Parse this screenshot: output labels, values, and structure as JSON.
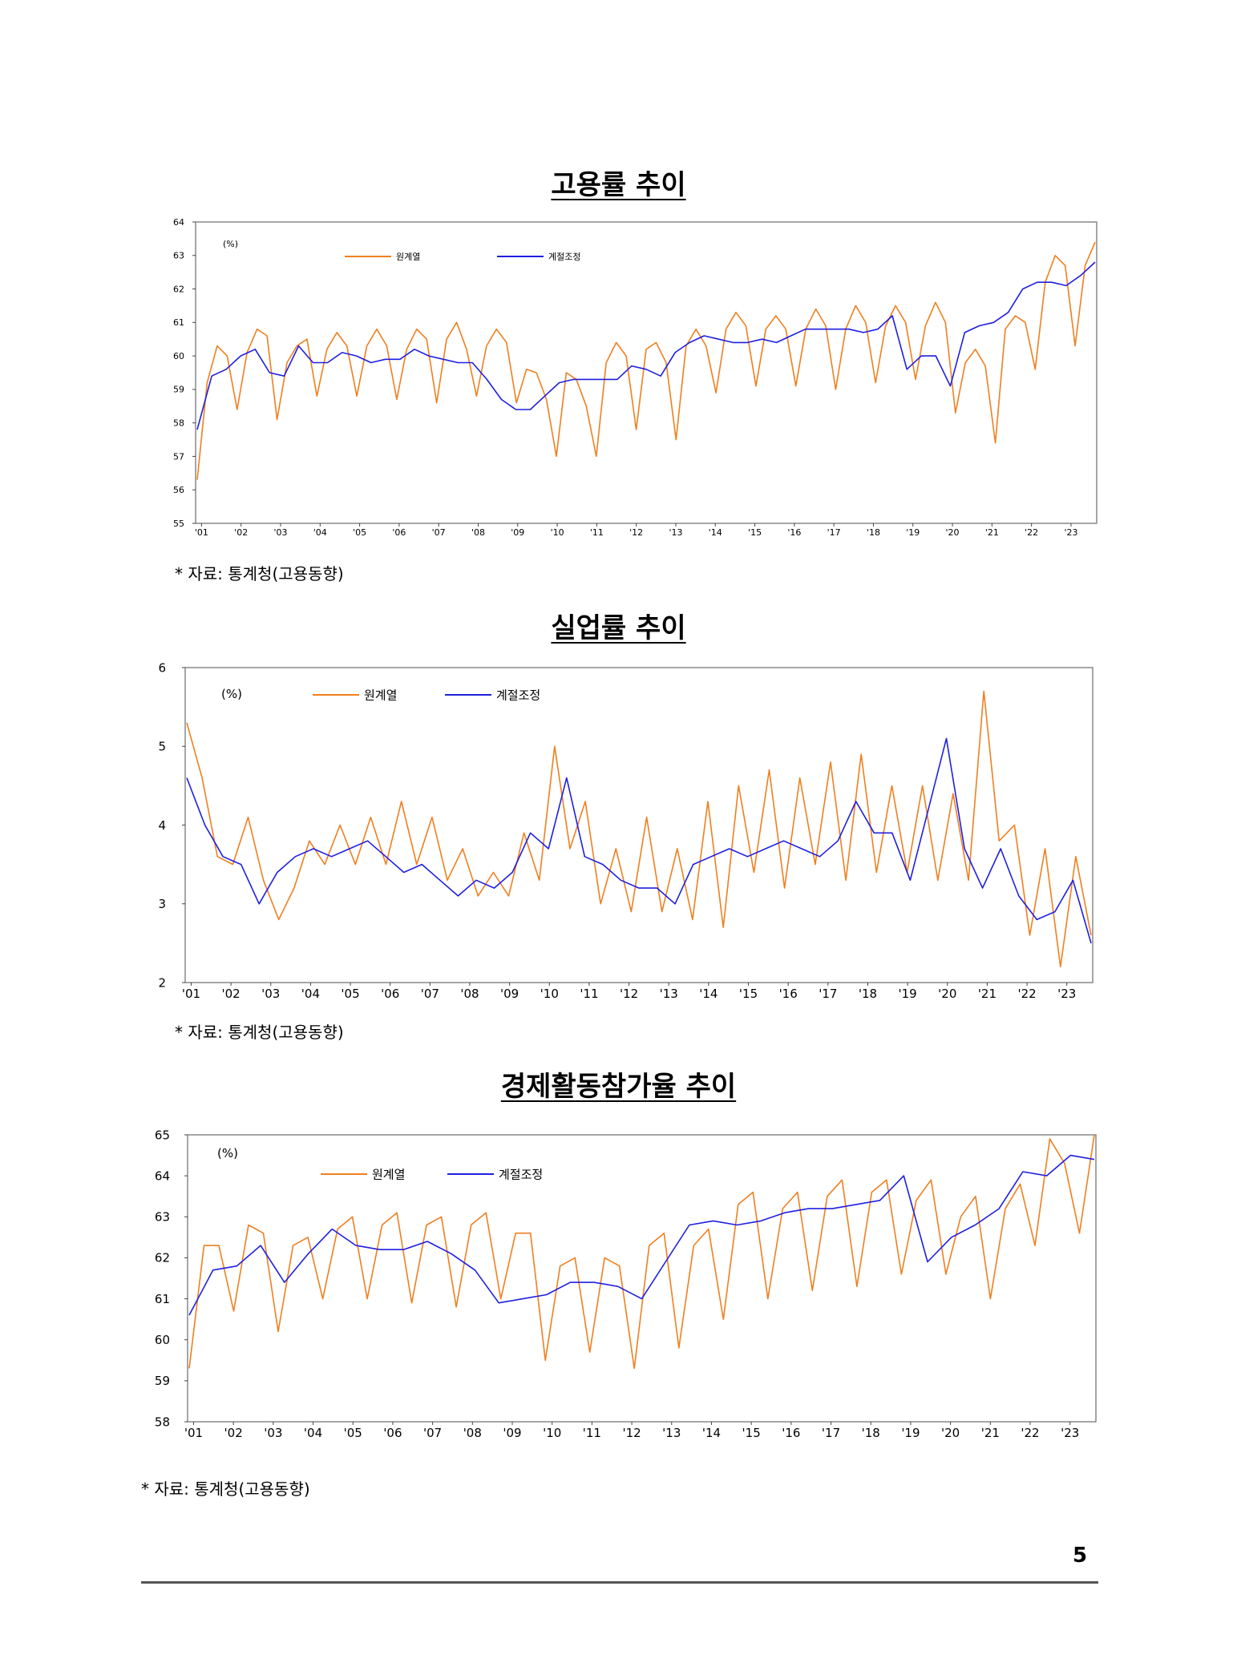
{
  "colors": {
    "original": "#F07F1F",
    "adjusted": "#1F1FE0",
    "frame": "#888888"
  },
  "page": {
    "number": "5"
  },
  "charts": [
    {
      "title": "고용률 추이",
      "source": "*  자료:  통계청(고용동향)",
      "unit_label": "(%)",
      "legend": [
        "원계열",
        "계절조정"
      ]
    },
    {
      "title": "실업률 추이",
      "source": "*  자료:  통계청(고용동향)",
      "unit_label": "(%)",
      "legend": [
        "원계열",
        "계절조정"
      ]
    },
    {
      "title": "경제활동참가율 추이",
      "source": "*  자료:  통계청(고용동향)",
      "unit_label": "(%)",
      "legend": [
        "원계열",
        "계절조정"
      ]
    }
  ],
  "chart_data": [
    {
      "type": "line",
      "title": "고용률 추이",
      "x_tick_labels": [
        "'01",
        "'02",
        "'03",
        "'04",
        "'05",
        "'06",
        "'07",
        "'08",
        "'09",
        "'10",
        "'11",
        "'12",
        "'13",
        "'14",
        "'15",
        "'16",
        "'17",
        "'18",
        "'19",
        "'20",
        "'21",
        "'22",
        "'23"
      ],
      "ylim": [
        55,
        64
      ],
      "y_ticks": [
        55,
        56,
        57,
        58,
        59,
        60,
        61,
        62,
        63,
        64
      ],
      "legend_position": "top-left",
      "series": [
        {
          "name": "원계열",
          "color": "#F07F1F",
          "values": [
            56.3,
            59.2,
            60.3,
            60.0,
            58.4,
            60.1,
            60.8,
            60.6,
            58.1,
            59.8,
            60.3,
            60.5,
            58.8,
            60.2,
            60.7,
            60.3,
            58.8,
            60.3,
            60.8,
            60.3,
            58.7,
            60.2,
            60.8,
            60.5,
            58.6,
            60.5,
            61.0,
            60.2,
            58.8,
            60.3,
            60.8,
            60.4,
            58.6,
            59.6,
            59.5,
            58.7,
            57.0,
            59.5,
            59.3,
            58.5,
            57.0,
            59.8,
            60.4,
            60.0,
            57.8,
            60.2,
            60.4,
            59.8,
            57.5,
            60.3,
            60.8,
            60.3,
            58.9,
            60.8,
            61.3,
            60.9,
            59.1,
            60.8,
            61.2,
            60.8,
            59.1,
            60.8,
            61.4,
            60.9,
            59.0,
            60.8,
            61.5,
            61.0,
            59.2,
            60.9,
            61.5,
            61.0,
            59.3,
            60.9,
            61.6,
            61.0,
            58.3,
            59.8,
            60.2,
            59.7,
            57.4,
            60.8,
            61.2,
            61.0,
            59.6,
            62.2,
            63.0,
            62.7,
            60.3,
            62.7,
            63.4
          ]
        },
        {
          "name": "계절조정",
          "color": "#1F1FE0",
          "values": [
            57.8,
            59.4,
            59.6,
            60.0,
            60.2,
            59.5,
            59.4,
            60.3,
            59.8,
            59.8,
            60.1,
            60.0,
            59.8,
            59.9,
            59.9,
            60.2,
            60.0,
            59.9,
            59.8,
            59.8,
            59.3,
            58.7,
            58.4,
            58.4,
            58.8,
            59.2,
            59.3,
            59.3,
            59.3,
            59.3,
            59.7,
            59.6,
            59.4,
            60.1,
            60.4,
            60.6,
            60.5,
            60.4,
            60.4,
            60.5,
            60.4,
            60.6,
            60.8,
            60.8,
            60.8,
            60.8,
            60.7,
            60.8,
            61.2,
            59.6,
            60.0,
            60.0,
            59.1,
            60.7,
            60.9,
            61.0,
            61.3,
            62.0,
            62.2,
            62.2,
            62.1,
            62.4,
            62.8
          ]
        }
      ]
    },
    {
      "type": "line",
      "title": "실업률 추이",
      "x_tick_labels": [
        "'01",
        "'02",
        "'03",
        "'04",
        "'05",
        "'06",
        "'07",
        "'08",
        "'09",
        "'10",
        "'11",
        "'12",
        "'13",
        "'14",
        "'15",
        "'16",
        "'17",
        "'18",
        "'19",
        "'20",
        "'21",
        "'22",
        "'23"
      ],
      "ylim": [
        2,
        6
      ],
      "y_ticks": [
        2,
        3,
        4,
        5,
        6
      ],
      "legend_position": "top-left",
      "series": [
        {
          "name": "원계열",
          "color": "#F07F1F",
          "values": [
            5.3,
            4.6,
            3.6,
            3.5,
            4.1,
            3.3,
            2.8,
            3.2,
            3.8,
            3.5,
            4.0,
            3.5,
            4.1,
            3.5,
            4.3,
            3.5,
            4.1,
            3.3,
            3.7,
            3.1,
            3.4,
            3.1,
            3.9,
            3.3,
            5.0,
            3.7,
            4.3,
            3.0,
            3.7,
            2.9,
            4.1,
            2.9,
            3.7,
            2.8,
            4.3,
            2.7,
            4.5,
            3.4,
            4.7,
            3.2,
            4.6,
            3.5,
            4.8,
            3.3,
            4.9,
            3.4,
            4.5,
            3.4,
            4.5,
            3.3,
            4.4,
            3.3,
            5.7,
            3.8,
            4.0,
            2.6,
            3.7,
            2.2,
            3.6,
            2.6
          ]
        },
        {
          "name": "계절조정",
          "color": "#1F1FE0",
          "values": [
            4.6,
            4.0,
            3.6,
            3.5,
            3.0,
            3.4,
            3.6,
            3.7,
            3.6,
            3.7,
            3.8,
            3.6,
            3.4,
            3.5,
            3.3,
            3.1,
            3.3,
            3.2,
            3.4,
            3.9,
            3.7,
            4.6,
            3.6,
            3.5,
            3.3,
            3.2,
            3.2,
            3.0,
            3.5,
            3.6,
            3.7,
            3.6,
            3.7,
            3.8,
            3.7,
            3.6,
            3.8,
            4.3,
            3.9,
            3.9,
            3.3,
            4.2,
            5.1,
            3.7,
            3.2,
            3.7,
            3.1,
            2.8,
            2.9,
            3.3,
            2.5
          ]
        }
      ]
    },
    {
      "type": "line",
      "title": "경제활동참가율 추이",
      "x_tick_labels": [
        "'01",
        "'02",
        "'03",
        "'04",
        "'05",
        "'06",
        "'07",
        "'08",
        "'09",
        "'10",
        "'11",
        "'12",
        "'13",
        "'14",
        "'15",
        "'16",
        "'17",
        "'18",
        "'19",
        "'20",
        "'21",
        "'22",
        "'23"
      ],
      "ylim": [
        58,
        65
      ],
      "y_ticks": [
        58,
        59,
        60,
        61,
        62,
        63,
        64,
        65
      ],
      "legend_position": "top-left",
      "series": [
        {
          "name": "원계열",
          "color": "#F07F1F",
          "values": [
            59.3,
            62.3,
            62.3,
            60.7,
            62.8,
            62.6,
            60.2,
            62.3,
            62.5,
            61.0,
            62.7,
            63.0,
            61.0,
            62.8,
            63.1,
            60.9,
            62.8,
            63.0,
            60.8,
            62.8,
            63.1,
            61.0,
            62.6,
            62.6,
            59.5,
            61.8,
            62.0,
            59.7,
            62.0,
            61.8,
            59.3,
            62.3,
            62.6,
            59.8,
            62.3,
            62.7,
            60.5,
            63.3,
            63.6,
            61.0,
            63.2,
            63.6,
            61.2,
            63.5,
            63.9,
            61.3,
            63.6,
            63.9,
            61.6,
            63.4,
            63.9,
            61.6,
            63.0,
            63.5,
            61.0,
            63.2,
            63.8,
            62.3,
            64.9,
            64.3,
            62.6,
            65.0
          ]
        },
        {
          "name": "계절조정",
          "color": "#1F1FE0",
          "values": [
            60.6,
            61.7,
            61.8,
            62.3,
            61.4,
            62.1,
            62.7,
            62.3,
            62.2,
            62.2,
            62.4,
            62.1,
            61.7,
            60.9,
            61.0,
            61.1,
            61.4,
            61.4,
            61.3,
            61.0,
            61.9,
            62.8,
            62.9,
            62.8,
            62.9,
            63.1,
            63.2,
            63.2,
            63.3,
            63.4,
            64.0,
            61.9,
            62.5,
            62.8,
            63.2,
            64.1,
            64.0,
            64.5,
            64.4
          ]
        }
      ]
    }
  ]
}
